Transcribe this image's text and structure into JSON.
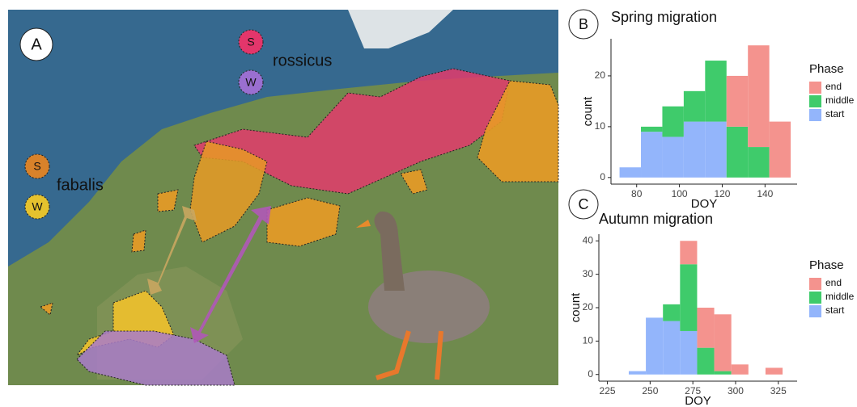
{
  "panel_labels": [
    "A",
    "B",
    "C"
  ],
  "map": {
    "taxa": [
      {
        "name": "rossicus",
        "markers": [
          "S",
          "W"
        ]
      },
      {
        "name": "fabalis",
        "markers": [
          "S",
          "W"
        ]
      }
    ]
  },
  "chart_data": [
    {
      "type": "histogram",
      "title": "Spring migration",
      "x_label": "DOY",
      "y_label": "count",
      "legend_title": "Phase",
      "bins": [
        72,
        82,
        92,
        102,
        112,
        122,
        132,
        142,
        152
      ],
      "series": [
        {
          "name": "end",
          "color": "#f4938e",
          "values": [
            0,
            0,
            0,
            0,
            0,
            10,
            20,
            11
          ]
        },
        {
          "name": "middle",
          "color": "#3fcb6b",
          "values": [
            0,
            1,
            6,
            6,
            12,
            10,
            6,
            0
          ]
        },
        {
          "name": "start",
          "color": "#93b5fb",
          "values": [
            2,
            9,
            8,
            11,
            11,
            0,
            0,
            0
          ]
        }
      ],
      "xlim": [
        68,
        155
      ],
      "xticks": [
        80,
        100,
        120,
        140
      ],
      "ylim": [
        -1.3,
        27.3
      ],
      "yticks": [
        0,
        10,
        20
      ]
    },
    {
      "type": "histogram",
      "title": "Autumn migration",
      "x_label": "DOY",
      "y_label": "count",
      "legend_title": "Phase",
      "bins": [
        237.5,
        247.5,
        257.5,
        267.5,
        277.5,
        287.5,
        297.5,
        307.5,
        317.5,
        327.5
      ],
      "series": [
        {
          "name": "end",
          "color": "#f4938e",
          "values": [
            0,
            0,
            0,
            7,
            12,
            17,
            3,
            0,
            2
          ]
        },
        {
          "name": "middle",
          "color": "#3fcb6b",
          "values": [
            0,
            0,
            5,
            20,
            8,
            1,
            0,
            0,
            0
          ]
        },
        {
          "name": "start",
          "color": "#93b5fb",
          "values": [
            1,
            17,
            16,
            13,
            0,
            0,
            0,
            0,
            0
          ]
        }
      ],
      "xlim": [
        220,
        336
      ],
      "xticks": [
        225,
        250,
        275,
        300,
        325
      ],
      "ylim": [
        -2,
        42
      ],
      "yticks": [
        0,
        10,
        20,
        30,
        40
      ]
    }
  ]
}
